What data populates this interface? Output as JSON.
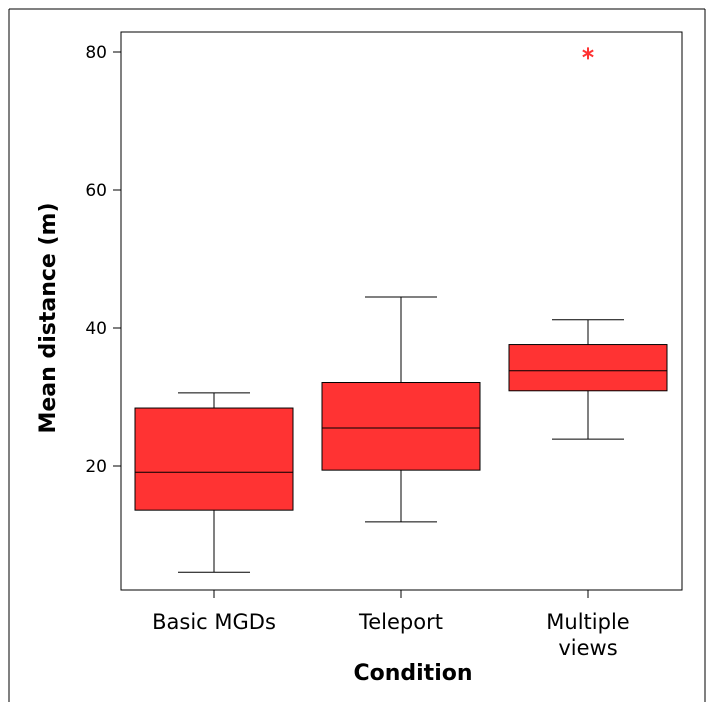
{
  "chart_data": {
    "type": "boxplot",
    "title": "",
    "xlabel": "Condition",
    "ylabel": "Mean distance (m)",
    "ylim": [
      2,
      83
    ],
    "yticks": [
      20,
      40,
      60,
      80
    ],
    "grid": false,
    "legend": "none",
    "fill_color": "#ff3333",
    "outlier_color": "#ff3333",
    "categories": [
      {
        "label_lines": [
          "Basic MGDs"
        ],
        "min": 4.6,
        "q1": 13.6,
        "median": 19.1,
        "q3": 28.4,
        "max": 30.6,
        "outliers": []
      },
      {
        "label_lines": [
          "Teleport"
        ],
        "min": 11.9,
        "q1": 19.4,
        "median": 25.5,
        "q3": 32.1,
        "max": 44.5,
        "outliers": []
      },
      {
        "label_lines": [
          "Multiple",
          "views"
        ],
        "min": 23.9,
        "q1": 30.9,
        "median": 33.8,
        "q3": 37.6,
        "max": 41.2,
        "outliers": [
          79.8
        ]
      }
    ]
  }
}
